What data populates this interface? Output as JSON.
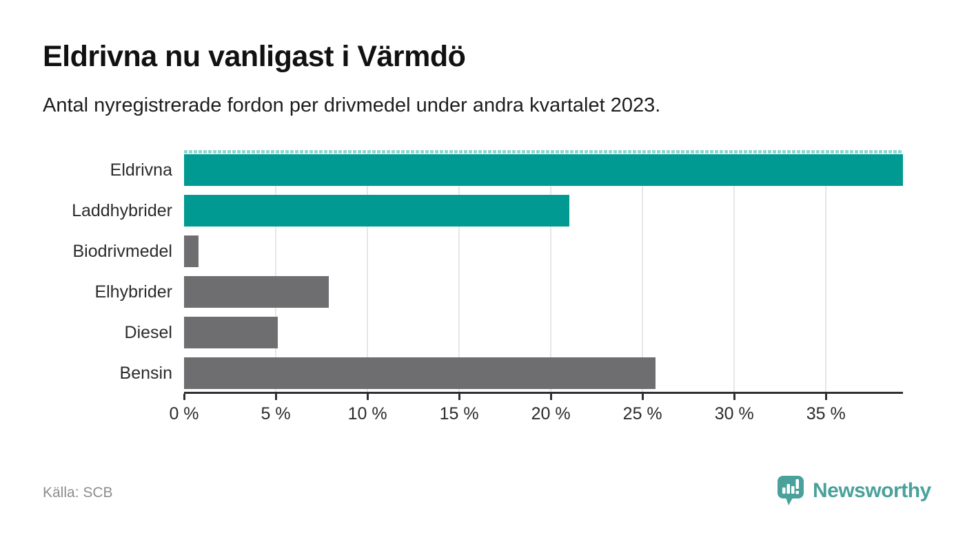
{
  "header": {
    "title": "Eldrivna nu vanligast i Värmdö",
    "subtitle": "Antal nyregistrerade fordon per drivmedel under andra kvartalet 2023."
  },
  "footer": {
    "source": "Källa: SCB",
    "brand": "Newsworthy"
  },
  "colors": {
    "highlight_teal": "#009a93",
    "neutral_gray": "#6e6e71",
    "gridline": "#e6e6e6",
    "axis": "#2f2f2f",
    "cut_dash": "#8fd8d2",
    "brand_teal": "#4aa19b",
    "title_text": "#111111",
    "label_text": "#2b2b2b",
    "source_text": "#8c8c8c"
  },
  "chart_data": {
    "type": "bar",
    "orientation": "horizontal",
    "title": "Eldrivna nu vanligast i Värmdö",
    "subtitle": "Antal nyregistrerade fordon per drivmedel under andra kvartalet 2023.",
    "categories": [
      "Eldrivna",
      "Laddhybrider",
      "Biodrivmedel",
      "Elhybrider",
      "Diesel",
      "Bensin"
    ],
    "values": [
      39.2,
      21.0,
      0.8,
      7.9,
      5.1,
      25.7
    ],
    "unit": "%",
    "bar_colors": [
      "#009a93",
      "#009a93",
      "#6e6e71",
      "#6e6e71",
      "#6e6e71",
      "#6e6e71"
    ],
    "top_bar_cut_indicator": true,
    "xlim": [
      0,
      39.2
    ],
    "xticks": [
      0,
      5,
      10,
      15,
      20,
      25,
      30,
      35
    ],
    "xtick_labels": [
      "0 %",
      "5 %",
      "10 %",
      "15 %",
      "20 %",
      "25 %",
      "30 %",
      "35 %"
    ],
    "grid": true,
    "legend": "none",
    "source": "Källa: SCB"
  }
}
